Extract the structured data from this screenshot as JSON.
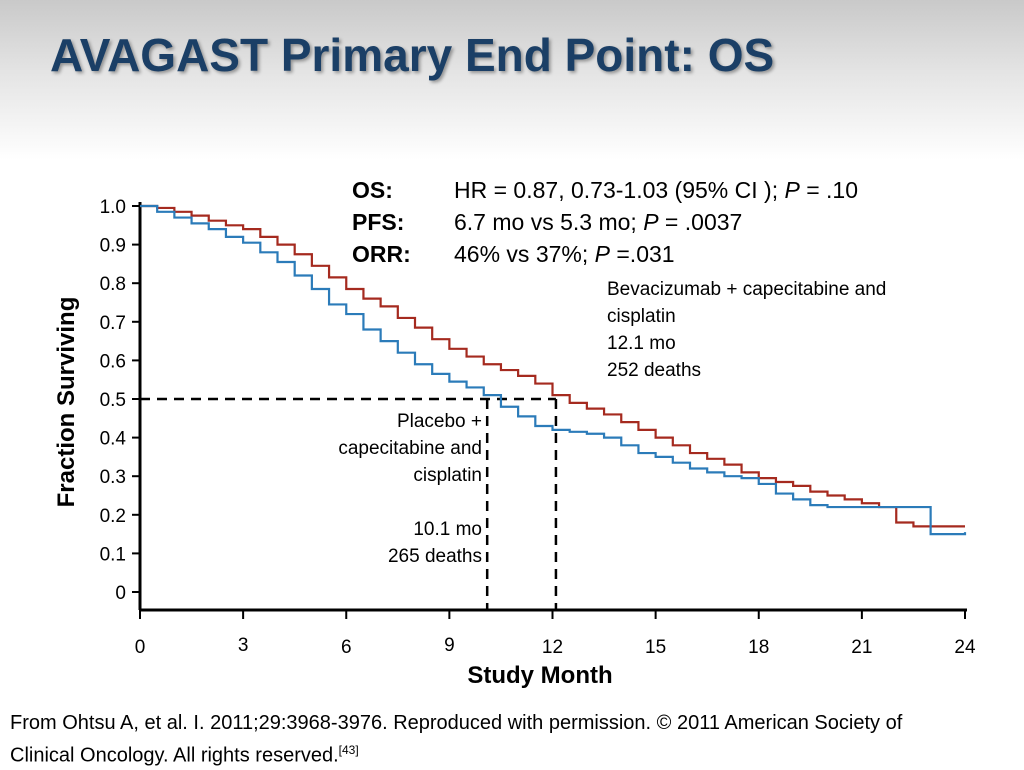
{
  "slide": {
    "title": "AVAGAST Primary End Point: OS"
  },
  "stats": [
    {
      "key": "OS:",
      "text": "HR = 0.87, 0.73-1.03  (95% CI ); ",
      "p_label": "P",
      "p_text": " = .10"
    },
    {
      "key": "PFS:",
      "text": "6.7 mo vs 5.3 mo; ",
      "p_label": "P",
      "p_text": " = .0037"
    },
    {
      "key": "ORR:",
      "text": "46% vs 37%; ",
      "p_label": "P",
      "p_text": " =.031"
    }
  ],
  "annotations": {
    "bev_line1": "Bevacizumab + capecitabine and cisplatin",
    "bev_line2": "12.1 mo",
    "bev_line3": "252 deaths",
    "pbo_line1": "Placebo + capecitabine and cisplatin",
    "pbo_line2": "10.1 mo",
    "pbo_line3": "265 deaths"
  },
  "footer": {
    "text": "From Ohtsu A, et al. I. 2011;29:3968-3976. Reproduced with permission. © 2011 American Society of Clinical Oncology.  All rights reserved.",
    "ref": "[43]"
  },
  "chart_data": {
    "type": "line",
    "xlabel": "Study Month",
    "ylabel": "Fraction Surviving",
    "xlim": [
      0,
      24
    ],
    "ylim": [
      0,
      1.0
    ],
    "xticks": [
      0,
      3,
      6,
      9,
      12,
      15,
      18,
      21,
      24
    ],
    "yticks": [
      0,
      0.1,
      0.2,
      0.3,
      0.4,
      0.5,
      0.6,
      0.7,
      0.8,
      0.9,
      1.0
    ],
    "ytick_labels": [
      "0",
      "0.1",
      "0.2",
      "0.3",
      "0.4",
      "0.5",
      "0.6",
      "0.7",
      "0.8",
      "0.9",
      "1.0"
    ],
    "median_line_y": 0.5,
    "medians": [
      10.1,
      12.1
    ],
    "grid": false,
    "colors": {
      "bevacizumab": "#a52a1f",
      "placebo": "#2b7bb9"
    },
    "series": [
      {
        "key": "bevacizumab",
        "x": [
          0,
          0.5,
          1,
          1.5,
          2,
          2.5,
          3,
          3.5,
          4,
          4.5,
          5,
          5.5,
          6,
          6.5,
          7,
          7.5,
          8,
          8.5,
          9,
          9.5,
          10,
          10.5,
          11,
          11.5,
          12,
          12.5,
          13,
          13.5,
          14,
          14.5,
          15,
          15.5,
          16,
          16.5,
          17,
          17.5,
          18,
          18.5,
          19,
          19.5,
          20,
          20.5,
          21,
          21.5,
          22,
          22.5,
          23,
          23.5,
          24
        ],
        "y": [
          1.0,
          0.995,
          0.985,
          0.975,
          0.962,
          0.95,
          0.94,
          0.92,
          0.9,
          0.875,
          0.845,
          0.815,
          0.785,
          0.76,
          0.74,
          0.71,
          0.685,
          0.655,
          0.63,
          0.61,
          0.59,
          0.575,
          0.56,
          0.54,
          0.51,
          0.49,
          0.475,
          0.46,
          0.44,
          0.42,
          0.4,
          0.38,
          0.36,
          0.345,
          0.33,
          0.31,
          0.295,
          0.285,
          0.275,
          0.26,
          0.25,
          0.24,
          0.23,
          0.22,
          0.18,
          0.17,
          0.17,
          0.17,
          0.17
        ]
      },
      {
        "key": "placebo",
        "x": [
          0,
          0.5,
          1,
          1.5,
          2,
          2.5,
          3,
          3.5,
          4,
          4.5,
          5,
          5.5,
          6,
          6.5,
          7,
          7.5,
          8,
          8.5,
          9,
          9.5,
          10,
          10.5,
          11,
          11.5,
          12,
          12.5,
          13,
          13.5,
          14,
          14.5,
          15,
          15.5,
          16,
          16.5,
          17,
          17.5,
          18,
          18.5,
          19,
          19.5,
          20,
          20.5,
          21,
          21.5,
          22,
          22.5,
          23,
          23.5,
          24
        ],
        "y": [
          1.0,
          0.985,
          0.97,
          0.955,
          0.94,
          0.92,
          0.905,
          0.88,
          0.855,
          0.82,
          0.785,
          0.745,
          0.72,
          0.68,
          0.65,
          0.62,
          0.59,
          0.565,
          0.545,
          0.53,
          0.51,
          0.48,
          0.455,
          0.43,
          0.42,
          0.415,
          0.41,
          0.4,
          0.38,
          0.36,
          0.35,
          0.335,
          0.32,
          0.31,
          0.3,
          0.295,
          0.28,
          0.255,
          0.24,
          0.225,
          0.22,
          0.22,
          0.22,
          0.22,
          0.22,
          0.22,
          0.15,
          0.15,
          0.155
        ]
      }
    ]
  }
}
